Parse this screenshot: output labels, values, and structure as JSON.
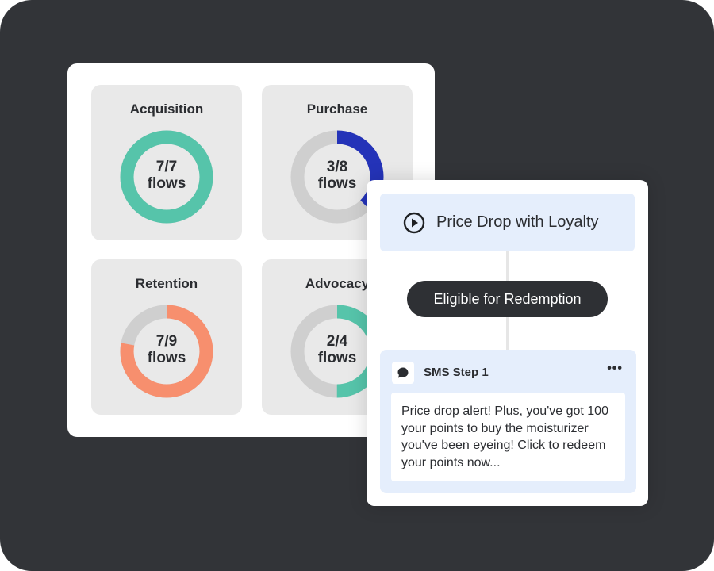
{
  "stages": [
    {
      "title": "Acquisition",
      "done": 7,
      "total": 7,
      "fraction": "7/7",
      "unit": "flows",
      "color": "#56c4aa"
    },
    {
      "title": "Purchase",
      "done": 3,
      "total": 8,
      "fraction": "3/8",
      "unit": "flows",
      "color": "#2433b8"
    },
    {
      "title": "Retention",
      "done": 7,
      "total": 9,
      "fraction": "7/9",
      "unit": "flows",
      "color": "#f78f6e"
    },
    {
      "title": "Advocacy",
      "done": 2,
      "total": 4,
      "fraction": "2/4",
      "unit": "flows",
      "color": "#56c4aa"
    }
  ],
  "track_color": "#cfcfcf",
  "flow": {
    "trigger": "Price Drop with Loyalty",
    "condition": "Eligible for Redemption",
    "step": {
      "title": "SMS Step 1",
      "more": "•••",
      "message": "Price drop alert! Plus, you've got 100 your points to buy the moisturizer you've been eyeing! Click to redeem your points now..."
    }
  }
}
